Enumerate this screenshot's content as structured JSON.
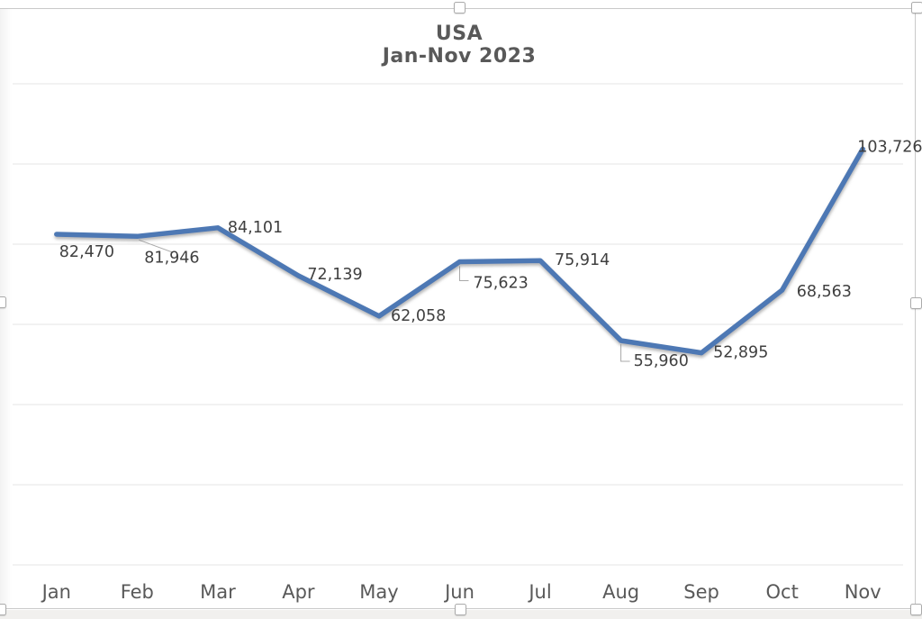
{
  "chart_data": {
    "type": "line",
    "title": "USA Jan-Nov 2023",
    "title_lines": [
      "USA",
      "Jan-Nov 2023"
    ],
    "categories": [
      "Jan",
      "Feb",
      "Mar",
      "Apr",
      "May",
      "Jun",
      "Jul",
      "Aug",
      "Sep",
      "Oct",
      "Nov"
    ],
    "values": [
      82470,
      81946,
      84101,
      72139,
      62058,
      75623,
      75914,
      55960,
      52895,
      68563,
      103726
    ],
    "data_labels": [
      "82,470",
      "81,946",
      "84,101",
      "72,139",
      "62,058",
      "75,623",
      "75,914",
      "55,960",
      "52,895",
      "68,563",
      "103,726"
    ],
    "xlabel": "",
    "ylabel": "",
    "ylim": [
      0,
      120000
    ],
    "gridline_step": 20000,
    "grid": true,
    "legend_position": "none",
    "value_axis_labels_visible": false,
    "series_color": "#4d78b4",
    "data_label_color": "#404040",
    "category_label_color": "#595959",
    "title_color": "#595959",
    "gridline_color": "#e4e4e4",
    "leader_line_color": "#a8a8a8"
  },
  "chrome": {
    "frame_border_color": "#c9c9c9",
    "selection_handles": [
      "top-center",
      "top-right",
      "left-middle",
      "right-middle",
      "bottom-left",
      "bottom-center",
      "bottom-right"
    ]
  }
}
